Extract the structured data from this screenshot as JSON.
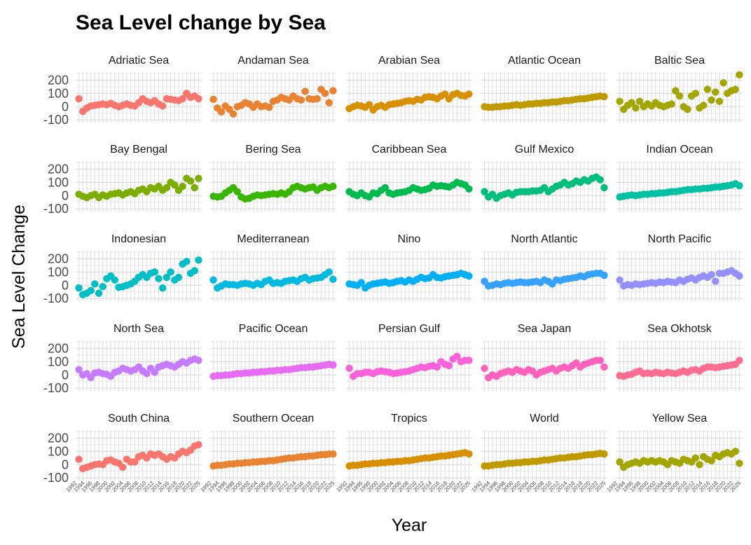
{
  "chart_data": {
    "type": "scatter",
    "title": "Sea Level change by Sea",
    "xlabel": "Year",
    "ylabel": "Sea Level Change",
    "ylim": [
      -120,
      260
    ],
    "yticks": [
      200,
      100,
      0,
      -100
    ],
    "grid": "on",
    "legend": "none",
    "x": [
      1993,
      1994,
      1995,
      1996,
      1997,
      1998,
      1999,
      2000,
      2001,
      2002,
      2003,
      2004,
      2005,
      2006,
      2007,
      2008,
      2009,
      2010,
      2011,
      2012,
      2013,
      2014,
      2015,
      2016,
      2017,
      2018,
      2019,
      2020,
      2021,
      2022,
      2023
    ],
    "x_tick_labels": [
      "1992",
      "1994",
      "1996",
      "1998",
      "2000",
      "2002",
      "2004",
      "2006",
      "2008",
      "2010",
      "2012",
      "2014",
      "2016",
      "2018",
      "2020",
      "2022",
      "2025"
    ],
    "panels": [
      {
        "name": "Adriatic Sea",
        "color": "#F8766D",
        "values": [
          60,
          -35,
          -10,
          5,
          10,
          15,
          20,
          15,
          25,
          10,
          0,
          10,
          20,
          10,
          5,
          30,
          60,
          40,
          30,
          45,
          20,
          5,
          60,
          55,
          50,
          45,
          60,
          100,
          70,
          80,
          60
        ]
      },
      {
        "name": "Andaman Sea",
        "color": "#EA8331",
        "values": [
          55,
          -10,
          -40,
          5,
          -20,
          -55,
          0,
          10,
          30,
          20,
          -5,
          20,
          0,
          5,
          -5,
          40,
          50,
          70,
          60,
          50,
          80,
          60,
          50,
          115,
          60,
          55,
          60,
          130,
          100,
          30,
          120
        ]
      },
      {
        "name": "Arabian Sea",
        "color": "#D89000",
        "values": [
          -15,
          0,
          10,
          5,
          -5,
          15,
          -25,
          0,
          10,
          -5,
          15,
          20,
          25,
          30,
          40,
          45,
          40,
          55,
          50,
          70,
          75,
          70,
          60,
          80,
          95,
          60,
          90,
          100,
          85,
          80,
          95
        ]
      },
      {
        "name": "Atlantic Ocean",
        "color": "#C09B00",
        "values": [
          0,
          -5,
          -5,
          0,
          0,
          5,
          5,
          10,
          15,
          10,
          15,
          20,
          20,
          25,
          25,
          30,
          30,
          35,
          35,
          40,
          45,
          45,
          50,
          55,
          60,
          60,
          65,
          70,
          75,
          80,
          75
        ]
      },
      {
        "name": "Baltic Sea",
        "color": "#A3A500",
        "values": [
          40,
          -20,
          10,
          30,
          -10,
          40,
          0,
          20,
          5,
          30,
          10,
          0,
          10,
          20,
          120,
          80,
          0,
          -20,
          80,
          100,
          -10,
          10,
          130,
          50,
          110,
          40,
          180,
          100,
          120,
          130,
          240
        ]
      },
      {
        "name": "Bay Bengal",
        "color": "#7CAE00",
        "values": [
          10,
          -5,
          -15,
          0,
          10,
          -15,
          5,
          -5,
          10,
          15,
          20,
          5,
          20,
          30,
          15,
          40,
          50,
          30,
          60,
          50,
          70,
          40,
          60,
          100,
          80,
          40,
          70,
          130,
          110,
          60,
          130
        ]
      },
      {
        "name": "Bering Sea",
        "color": "#39B600",
        "values": [
          -5,
          -10,
          -5,
          20,
          40,
          60,
          30,
          -10,
          -25,
          -20,
          -5,
          5,
          0,
          5,
          10,
          15,
          10,
          20,
          10,
          30,
          60,
          70,
          60,
          50,
          60,
          65,
          40,
          60,
          70,
          60,
          70
        ]
      },
      {
        "name": "Caribbean Sea",
        "color": "#00BB4E",
        "values": [
          30,
          10,
          0,
          20,
          0,
          -10,
          20,
          15,
          40,
          60,
          20,
          10,
          20,
          25,
          30,
          40,
          60,
          50,
          40,
          45,
          55,
          80,
          70,
          75,
          70,
          65,
          80,
          100,
          90,
          80,
          50
        ]
      },
      {
        "name": "Gulf Mexico",
        "color": "#00BF7D",
        "values": [
          30,
          -10,
          10,
          -20,
          0,
          10,
          20,
          5,
          25,
          30,
          30,
          30,
          35,
          35,
          40,
          60,
          30,
          50,
          70,
          80,
          100,
          80,
          90,
          110,
          100,
          120,
          110,
          130,
          140,
          120,
          60
        ]
      },
      {
        "name": "Indian Ocean",
        "color": "#00C1A3",
        "values": [
          -10,
          -5,
          0,
          5,
          0,
          5,
          10,
          10,
          15,
          15,
          20,
          20,
          25,
          30,
          30,
          35,
          40,
          45,
          45,
          50,
          50,
          55,
          55,
          60,
          65,
          65,
          70,
          75,
          80,
          90,
          75
        ]
      },
      {
        "name": "Indonesian",
        "color": "#00BFC4",
        "values": [
          -20,
          -70,
          -60,
          -40,
          10,
          -60,
          -10,
          50,
          70,
          40,
          -15,
          -10,
          0,
          10,
          30,
          60,
          80,
          60,
          90,
          100,
          50,
          -20,
          60,
          100,
          40,
          60,
          160,
          180,
          90,
          110,
          190
        ]
      },
      {
        "name": "Mediterranean",
        "color": "#00BAE0",
        "values": [
          40,
          -20,
          -5,
          10,
          5,
          5,
          0,
          10,
          15,
          10,
          0,
          15,
          5,
          30,
          40,
          15,
          20,
          15,
          30,
          35,
          40,
          30,
          50,
          60,
          40,
          50,
          55,
          60,
          80,
          100,
          45
        ]
      },
      {
        "name": "Nino",
        "color": "#00B0F6",
        "values": [
          10,
          5,
          0,
          20,
          -20,
          0,
          10,
          15,
          20,
          25,
          15,
          20,
          30,
          35,
          25,
          40,
          30,
          45,
          60,
          50,
          55,
          80,
          60,
          55,
          65,
          70,
          75,
          80,
          90,
          80,
          70
        ]
      },
      {
        "name": "North Atlantic",
        "color": "#35A2FF",
        "values": [
          30,
          -5,
          0,
          10,
          5,
          15,
          20,
          15,
          20,
          25,
          20,
          20,
          25,
          30,
          20,
          40,
          30,
          10,
          40,
          35,
          45,
          50,
          55,
          60,
          70,
          65,
          80,
          85,
          90,
          90,
          75
        ]
      },
      {
        "name": "North Pacific",
        "color": "#9590FF",
        "values": [
          40,
          -5,
          5,
          0,
          10,
          5,
          10,
          15,
          20,
          15,
          25,
          20,
          30,
          25,
          20,
          40,
          30,
          45,
          55,
          40,
          60,
          70,
          60,
          80,
          30,
          90,
          90,
          100,
          110,
          90,
          70
        ]
      },
      {
        "name": "North Sea",
        "color": "#C77CFF",
        "values": [
          40,
          0,
          10,
          -20,
          15,
          20,
          10,
          5,
          -10,
          20,
          30,
          50,
          40,
          30,
          40,
          60,
          30,
          10,
          50,
          20,
          60,
          70,
          80,
          70,
          60,
          80,
          100,
          90,
          110,
          120,
          110
        ]
      },
      {
        "name": "Pacific Ocean",
        "color": "#E76BF3",
        "values": [
          -10,
          -5,
          -5,
          0,
          0,
          5,
          10,
          10,
          15,
          15,
          20,
          20,
          25,
          25,
          30,
          30,
          35,
          35,
          40,
          40,
          45,
          50,
          55,
          55,
          60,
          60,
          65,
          70,
          75,
          80,
          75
        ]
      },
      {
        "name": "Persian Gulf",
        "color": "#FA62DB",
        "values": [
          50,
          -10,
          10,
          10,
          20,
          20,
          10,
          25,
          30,
          25,
          20,
          10,
          15,
          20,
          25,
          30,
          40,
          50,
          60,
          55,
          65,
          70,
          60,
          100,
          80,
          70,
          120,
          140,
          100,
          110,
          110
        ]
      },
      {
        "name": "Sea Japan",
        "color": "#FF62BC",
        "values": [
          50,
          -20,
          0,
          -10,
          10,
          20,
          30,
          20,
          40,
          30,
          20,
          40,
          30,
          0,
          20,
          30,
          40,
          50,
          30,
          50,
          60,
          50,
          70,
          90,
          60,
          80,
          90,
          100,
          110,
          110,
          60
        ]
      },
      {
        "name": "Sea Okhotsk",
        "color": "#FF6C91",
        "values": [
          -5,
          -10,
          0,
          5,
          20,
          30,
          10,
          15,
          10,
          20,
          15,
          10,
          20,
          15,
          10,
          20,
          30,
          20,
          35,
          40,
          30,
          50,
          60,
          60,
          55,
          60,
          65,
          70,
          75,
          80,
          110
        ]
      },
      {
        "name": "South China",
        "color": "#F8766D",
        "values": [
          40,
          -30,
          -20,
          -10,
          0,
          5,
          0,
          30,
          35,
          20,
          10,
          -20,
          40,
          20,
          20,
          60,
          70,
          50,
          80,
          70,
          80,
          60,
          40,
          60,
          50,
          80,
          100,
          90,
          110,
          140,
          150
        ]
      },
      {
        "name": "Southern Ocean",
        "color": "#EA8331",
        "values": [
          -10,
          -5,
          -5,
          0,
          5,
          5,
          10,
          10,
          15,
          15,
          20,
          20,
          25,
          25,
          30,
          30,
          35,
          40,
          45,
          50,
          50,
          55,
          60,
          60,
          65,
          65,
          70,
          75,
          75,
          80,
          80
        ]
      },
      {
        "name": "Tropics",
        "color": "#D89000",
        "values": [
          -10,
          -5,
          -5,
          0,
          5,
          5,
          10,
          10,
          15,
          15,
          20,
          20,
          25,
          25,
          30,
          30,
          35,
          40,
          45,
          50,
          50,
          55,
          60,
          65,
          65,
          70,
          75,
          80,
          85,
          90,
          80
        ]
      },
      {
        "name": "World",
        "color": "#C09B00",
        "values": [
          -10,
          -10,
          -5,
          0,
          0,
          5,
          10,
          10,
          15,
          15,
          20,
          20,
          25,
          25,
          30,
          35,
          35,
          40,
          45,
          50,
          50,
          55,
          60,
          60,
          65,
          70,
          75,
          75,
          80,
          85,
          80
        ]
      },
      {
        "name": "Yellow Sea",
        "color": "#A3A500",
        "values": [
          20,
          -20,
          0,
          10,
          20,
          10,
          30,
          20,
          30,
          20,
          30,
          20,
          0,
          30,
          20,
          10,
          40,
          30,
          20,
          50,
          0,
          60,
          40,
          30,
          70,
          60,
          80,
          90,
          80,
          100,
          10
        ]
      }
    ]
  }
}
